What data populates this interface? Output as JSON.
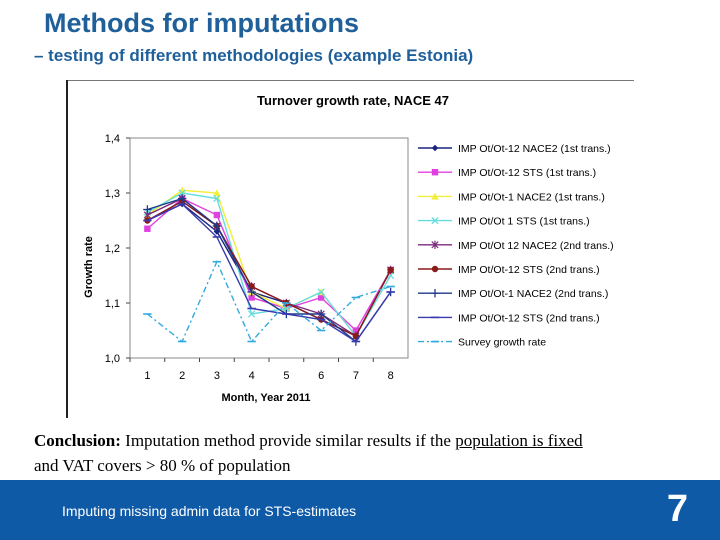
{
  "slide": {
    "title": "Methods for imputations",
    "subtitle": "– testing of different methodologies (example Estonia)",
    "conclusion_label": "Conclusion:",
    "conclusion_text_1": " Imputation method provide similar results if the ",
    "conclusion_underlined": "population is fixed",
    "conclusion_text_2": "and VAT covers > 80 % of population",
    "footer_text": "Imputing missing admin data for STS-estimates",
    "page_number": "7"
  },
  "colors": {
    "title": "#1f5f9a",
    "footer_bg": "#0e5aa7"
  },
  "chart_data": {
    "type": "line",
    "title": "Turnover growth rate, NACE 47",
    "xlabel": "Month, Year 2011",
    "ylabel": "Growth rate",
    "categories": [
      "1",
      "2",
      "3",
      "4",
      "5",
      "6",
      "7",
      "8"
    ],
    "ylim": [
      1.0,
      1.4
    ],
    "yticks": [
      "1,0",
      "1,1",
      "1,2",
      "1,3",
      "1,4"
    ],
    "ytick_values": [
      1.0,
      1.1,
      1.2,
      1.3,
      1.4
    ],
    "legend_position": "right",
    "series": [
      {
        "name": "IMP Ot/Ot-12 NACE2 (1st trans.)",
        "color": "#1a237e",
        "marker": "diamond",
        "dash": "",
        "values": [
          1.25,
          1.28,
          1.23,
          1.12,
          1.1,
          1.07,
          1.04,
          1.16
        ]
      },
      {
        "name": "IMP Ot/Ot-12 STS (1st trans.)",
        "color": "#e040e0",
        "marker": "square",
        "dash": "",
        "values": [
          1.235,
          1.29,
          1.26,
          1.11,
          1.09,
          1.11,
          1.05,
          1.16
        ]
      },
      {
        "name": "IMP Ot/Ot-1 NACE2 (1st trans.)",
        "color": "#f2ee3a",
        "marker": "triangle",
        "dash": "",
        "values": [
          1.26,
          1.305,
          1.3,
          1.12,
          1.09,
          1.12,
          1.04,
          1.16
        ]
      },
      {
        "name": "IMP Ot/Ot 1 STS (1st trans.)",
        "color": "#66dddd",
        "marker": "x",
        "dash": "",
        "values": [
          1.265,
          1.3,
          1.29,
          1.08,
          1.09,
          1.12,
          1.04,
          1.15
        ]
      },
      {
        "name": "IMP Ot/Ot 12 NACE2 (2nd trans.)",
        "color": "#7b2a7b",
        "marker": "star",
        "dash": "",
        "values": [
          1.26,
          1.29,
          1.24,
          1.13,
          1.1,
          1.08,
          1.04,
          1.16
        ]
      },
      {
        "name": "IMP Ot/Ot-12 STS (2nd trans.)",
        "color": "#8b1a1a",
        "marker": "circle",
        "dash": "",
        "values": [
          1.25,
          1.285,
          1.24,
          1.13,
          1.1,
          1.07,
          1.04,
          1.16
        ]
      },
      {
        "name": "IMP Ot/Ot-1 NACE2 (2nd trans.)",
        "color": "#1e3a8a",
        "marker": "plus",
        "dash": "",
        "values": [
          1.27,
          1.29,
          1.24,
          1.12,
          1.08,
          1.08,
          1.03,
          1.12
        ]
      },
      {
        "name": "IMP Ot/Ot-12 STS (2nd trans.)",
        "color": "#3a3ab0",
        "marker": "dash",
        "dash": "",
        "values": [
          1.25,
          1.28,
          1.22,
          1.09,
          1.08,
          1.07,
          1.03,
          1.12
        ]
      },
      {
        "name": "Survey growth rate",
        "color": "#33aadd",
        "marker": "dash",
        "dash": "6,3,2,3",
        "values": [
          1.08,
          1.03,
          1.175,
          1.03,
          1.1,
          1.05,
          1.11,
          1.13
        ]
      }
    ]
  }
}
